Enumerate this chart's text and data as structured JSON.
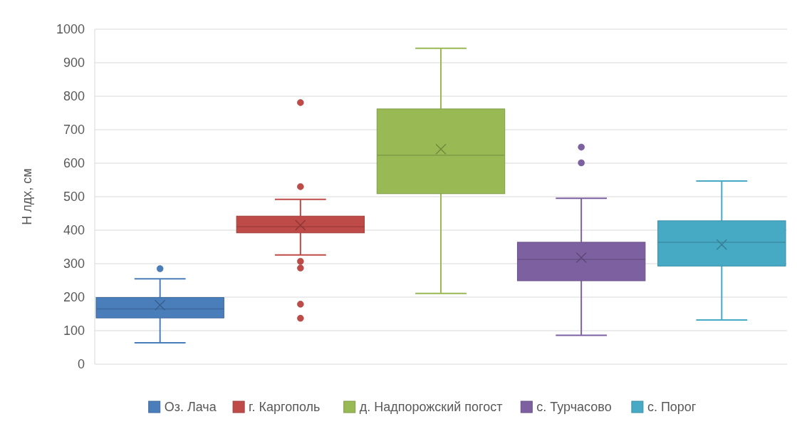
{
  "chart_data": {
    "type": "box",
    "ylabel": "Н лдх, см",
    "categories": [
      null
    ],
    "ylim": [
      0,
      1000
    ],
    "yticks": [
      0,
      100,
      200,
      300,
      400,
      500,
      600,
      700,
      800,
      900,
      1000
    ],
    "grid": "y",
    "legend": "bottom",
    "marker": "cross",
    "series": [
      {
        "name": "Оз. Лача",
        "color": "#4a7ebb",
        "boxes": [
          {
            "low": 64,
            "q1": 138,
            "median": 165,
            "q3": 199,
            "high": 255,
            "mean": 176,
            "outliers": [
              285
            ]
          }
        ]
      },
      {
        "name": "г. Каргополь",
        "color": "#be4b48",
        "boxes": [
          {
            "low": 326,
            "q1": 392,
            "median": 410,
            "q3": 442,
            "high": 492,
            "mean": 415,
            "outliers": [
              781,
              530,
              307,
              287,
              179,
              137
            ]
          }
        ]
      },
      {
        "name": "д. Надпорожский погост",
        "color": "#98b954",
        "boxes": [
          {
            "low": 211,
            "q1": 509,
            "median": 624,
            "q3": 762,
            "high": 943,
            "mean": 642
          }
        ]
      },
      {
        "name": "с. Турчасово",
        "color": "#7d60a0",
        "boxes": [
          {
            "low": 86,
            "q1": 249,
            "median": 313,
            "q3": 364,
            "high": 495,
            "mean": 318,
            "outliers": [
              648,
              601
            ]
          }
        ]
      },
      {
        "name": "с. Порог",
        "color": "#46aac5",
        "boxes": [
          {
            "low": 132,
            "q1": 293,
            "median": 364,
            "q3": 428,
            "high": 547,
            "mean": 357
          }
        ]
      }
    ]
  }
}
